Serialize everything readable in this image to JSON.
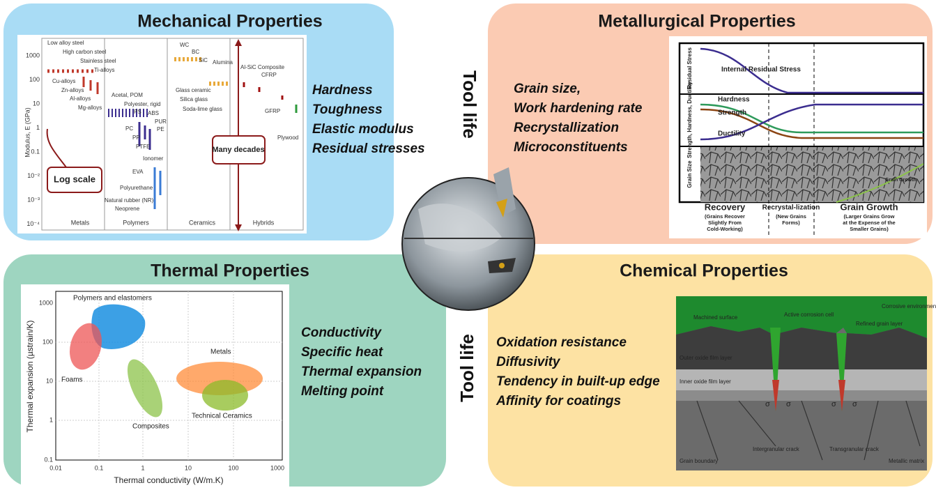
{
  "tool_life": [
    "Tool life",
    "Tool life"
  ],
  "mechanical": {
    "title": "Mechanical Properties",
    "items": [
      "Hardness",
      "Toughness",
      "Elastic modulus",
      "Residual stresses"
    ],
    "figure": {
      "y_axis_label": "Modulus, E (GPa)",
      "y_ticks": [
        "1000",
        "100",
        "10",
        "1",
        "0.1",
        "10⁻²",
        "10⁻³",
        "10⁻⁴"
      ],
      "classes": [
        "Metals",
        "Polymers",
        "Ceramics",
        "Hybrids"
      ],
      "materials": [
        "Low alloy steel",
        "High carbon steel",
        "Stainless steel",
        "Ti-alloys",
        "Cu-alloys",
        "Zn-alloys",
        "Al-alloys",
        "Mg-alloys",
        "Acetal, POM",
        "Polyester, rigid",
        "PS",
        "ABS",
        "PUR",
        "PC",
        "PE",
        "PP",
        "PTFE",
        "Ionomer",
        "EVA",
        "Polyurethane",
        "Natural rubber (NR)",
        "Neoprene",
        "WC",
        "BC",
        "SiC",
        "Alumina",
        "Glass ceramic",
        "Silica glass",
        "Soda-lime glass",
        "Al-SiC Composite",
        "CFRP",
        "GFRP",
        "Plywood"
      ],
      "callouts": [
        "Log scale",
        "Many decades"
      ]
    }
  },
  "metallurgical": {
    "title": "Metallurgical Properties",
    "items": [
      "Grain size,",
      "Work hardening rate",
      "Recrystallization",
      "Microconstituents"
    ],
    "figure": {
      "rows": [
        "Residual Stress",
        "Strength, Hardness, Ductility",
        "Grain Size"
      ],
      "curves": [
        "Internal Residual Stress",
        "Hardness",
        "Strength",
        "Ductility",
        "Grain Growth"
      ],
      "stages": [
        {
          "name": "Recovery",
          "note": [
            "(Grains Recover",
            "Slightly From",
            "Cold-Working)"
          ]
        },
        {
          "name": "Recrystal-lization",
          "note": [
            "(New Grains",
            "Forms)"
          ]
        },
        {
          "name": "Grain Growth",
          "note": [
            "(Larger Grains Grow",
            "at the Expense of the",
            "Smaller Grains)"
          ]
        }
      ]
    }
  },
  "thermal": {
    "title": "Thermal Properties",
    "items": [
      "Conductivity",
      "Specific heat",
      "Thermal expansion",
      "Melting point"
    ],
    "figure": {
      "x_axis_label": "Thermal conductivity (W/m.K)",
      "y_axis_label": "Thermal expansion (µstrain/K)",
      "x_ticks": [
        "0.01",
        "0.1",
        "1",
        "10",
        "100",
        "1000"
      ],
      "y_ticks": [
        "1000",
        "100",
        "10",
        "1",
        "0.1"
      ],
      "regions": [
        "Polymers and elastomers",
        "Foams",
        "Composites",
        "Metals",
        "Technical Ceramics"
      ]
    }
  },
  "chemical": {
    "title": "Chemical Properties",
    "items": [
      "Oxidation resistance",
      "Diffusivity",
      "Tendency in built-up edge",
      "Affinity for coatings"
    ],
    "figure": {
      "labels": [
        "Corrosive environment",
        "Machined surface",
        "Active corrosion cell",
        "Refined grain layer",
        "Outer oxide film layer",
        "Inner oxide film layer",
        "Grain boundary",
        "Intergranular crack",
        "Transgranular crack",
        "Metallic matrix"
      ],
      "stress_symbol": "σ"
    }
  }
}
